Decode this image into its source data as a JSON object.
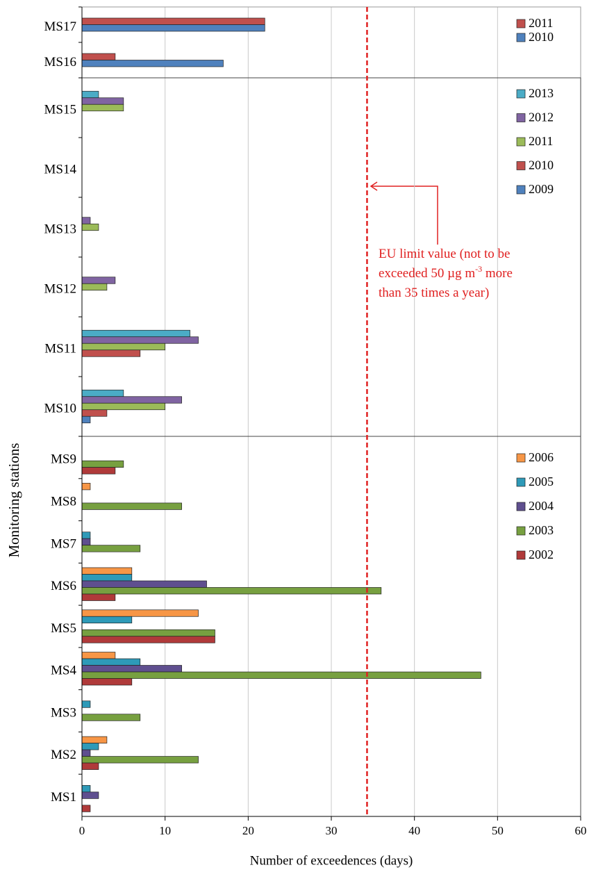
{
  "chart_data": {
    "type": "bar",
    "orientation": "horizontal",
    "xlabel": "Number of exceedences (days)",
    "ylabel": "Monitoring stations",
    "xlim": [
      0,
      60
    ],
    "xticks": [
      0,
      10,
      20,
      30,
      40,
      50,
      60
    ],
    "grid": true,
    "legend": "upper right",
    "limit_line": 34.3,
    "limit_color": "#e02020",
    "annotation": [
      [
        "EU limit value (not to be"
      ],
      [
        "exceeded 50 µg m",
        "-3",
        " more"
      ],
      [
        "than 35 times a year)"
      ]
    ],
    "panels": [
      {
        "categories": [
          "MS17",
          "MS16"
        ],
        "series": [
          {
            "name": "2011",
            "color": "#c0504d",
            "values": [
              22,
              4
            ]
          },
          {
            "name": "2010",
            "color": "#4f81bd",
            "values": [
              22,
              17
            ]
          }
        ]
      },
      {
        "categories": [
          "MS15",
          "MS14",
          "MS13",
          "MS12",
          "MS11",
          "MS10"
        ],
        "series": [
          {
            "name": "2013",
            "color": "#4bacc6",
            "values": [
              2,
              null,
              null,
              null,
              13,
              5
            ]
          },
          {
            "name": "2012",
            "color": "#8064a2",
            "values": [
              5,
              null,
              1,
              4,
              14,
              12
            ]
          },
          {
            "name": "2011",
            "color": "#9bbb59",
            "values": [
              5,
              null,
              2,
              3,
              10,
              10
            ]
          },
          {
            "name": "2010",
            "color": "#c0504d",
            "values": [
              null,
              null,
              null,
              null,
              7,
              3
            ]
          },
          {
            "name": "2009",
            "color": "#4f81bd",
            "values": [
              null,
              null,
              null,
              null,
              null,
              1
            ]
          }
        ]
      },
      {
        "categories": [
          "MS9",
          "MS8",
          "MS7",
          "MS6",
          "MS5",
          "MS4",
          "MS3",
          "MS2",
          "MS1"
        ],
        "series": [
          {
            "name": "2006",
            "color": "#f79646",
            "values": [
              null,
              1,
              null,
              6,
              14,
              4,
              null,
              3,
              null
            ]
          },
          {
            "name": "2005",
            "color": "#2e9ab8",
            "values": [
              null,
              null,
              1,
              6,
              6,
              7,
              1,
              2,
              1
            ]
          },
          {
            "name": "2004",
            "color": "#5f4f8f",
            "values": [
              null,
              null,
              1,
              15,
              null,
              12,
              null,
              1,
              2
            ]
          },
          {
            "name": "2003",
            "color": "#77a040",
            "values": [
              5,
              12,
              7,
              36,
              16,
              48,
              7,
              14,
              null
            ]
          },
          {
            "name": "2002",
            "color": "#b03a3a",
            "values": [
              4,
              null,
              null,
              4,
              16,
              6,
              null,
              2,
              1
            ]
          }
        ]
      }
    ]
  }
}
